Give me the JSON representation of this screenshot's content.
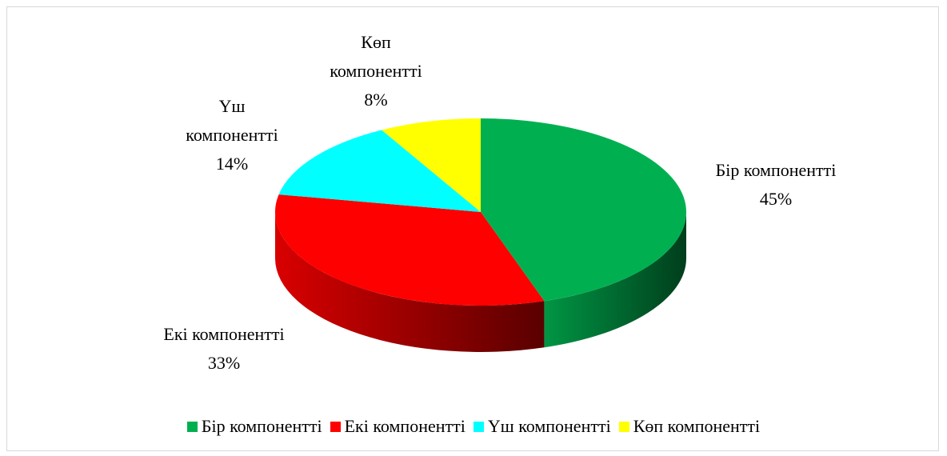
{
  "chart_data": {
    "type": "pie",
    "categories": [
      "Бір компонентті",
      "Екі компонентті",
      "Үш компонентті",
      "Көп компонентті"
    ],
    "values": [
      45,
      33,
      14,
      8
    ],
    "value_labels": [
      "45%",
      "33%",
      "14%",
      "8%"
    ],
    "colors": [
      "#00b050",
      "#ff0000",
      "#00ffff",
      "#ffff00"
    ],
    "legend": "bottom"
  }
}
